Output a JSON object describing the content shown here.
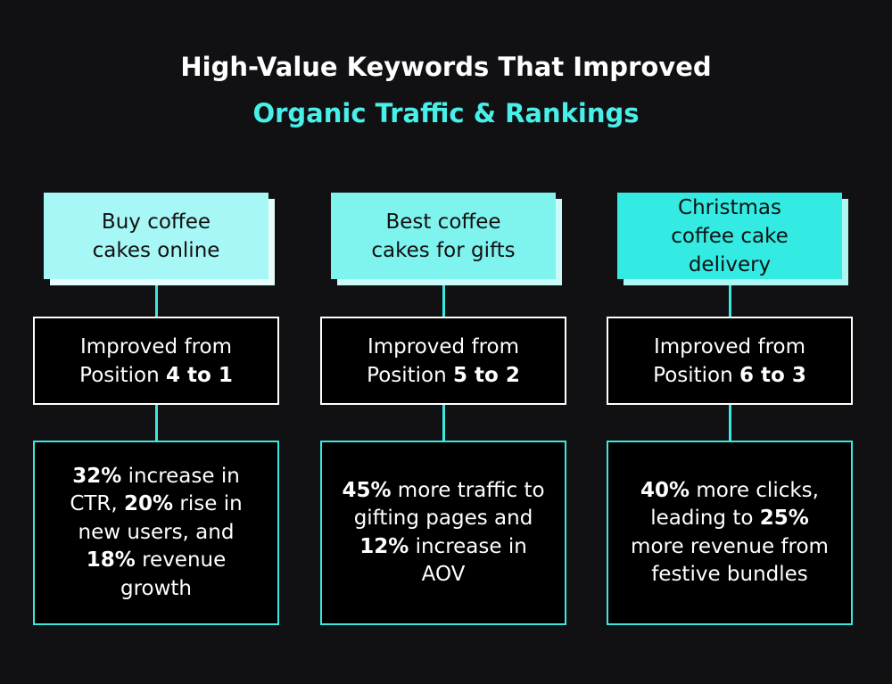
{
  "header": {
    "title_line1": "High-Value Keywords That Improved",
    "title_line2": "Organic Traffic & Rankings"
  },
  "columns": [
    {
      "keyword": "Buy coffee cakes online",
      "color": "#a6f7f5",
      "shadow": "#e6fdfc",
      "position": {
        "text": "Improved from Position",
        "bold": "4 to 1"
      },
      "result": [
        {
          "text": "32%",
          "bold": true
        },
        {
          "text": " increase in CTR, ",
          "bold": false
        },
        {
          "text": "20%",
          "bold": true
        },
        {
          "text": " rise in new users, and ",
          "bold": false
        },
        {
          "text": "18%",
          "bold": true
        },
        {
          "text": " revenue growth",
          "bold": false
        }
      ]
    },
    {
      "keyword": "Best coffee cakes for gifts",
      "color": "#7ff3ee",
      "shadow": "#c9faf8",
      "position": {
        "text": "Improved from Position",
        "bold": "5 to 2"
      },
      "result": [
        {
          "text": "45%",
          "bold": true
        },
        {
          "text": " more traffic to gifting pages and ",
          "bold": false
        },
        {
          "text": "12%",
          "bold": true
        },
        {
          "text": " increase in AOV",
          "bold": false
        }
      ]
    },
    {
      "keyword": "Christmas coffee cake delivery",
      "color": "#33ebe3",
      "shadow": "#aef6f2",
      "position": {
        "text": "Improved from Position",
        "bold": "6 to 3"
      },
      "result": [
        {
          "text": "40%",
          "bold": true
        },
        {
          "text": " more clicks, leading to ",
          "bold": false
        },
        {
          "text": "25%",
          "bold": true
        },
        {
          "text": " more revenue from festive bundles",
          "bold": false
        }
      ]
    }
  ]
}
